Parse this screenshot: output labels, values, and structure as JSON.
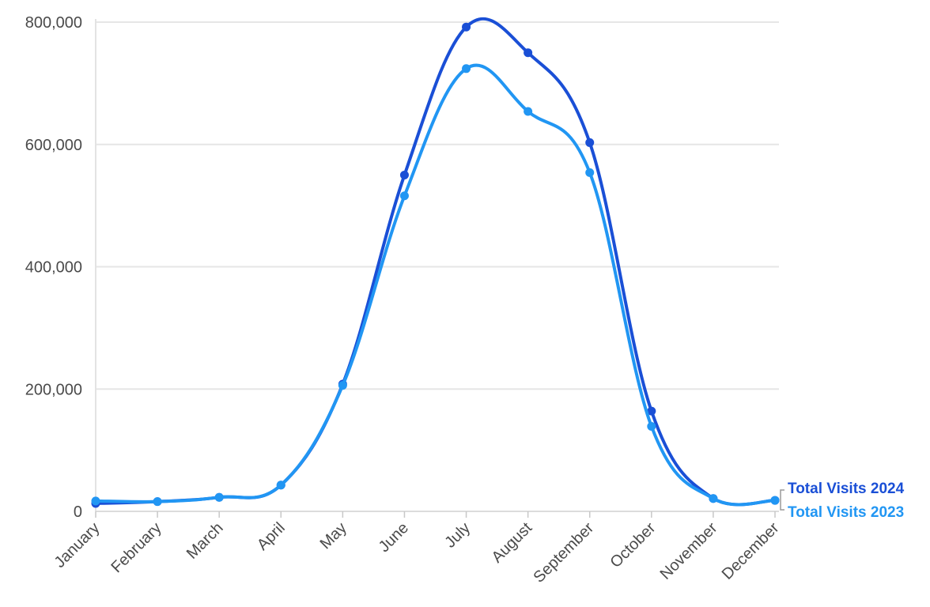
{
  "chart_data": {
    "type": "line",
    "title": "",
    "xlabel": "",
    "ylabel": "",
    "categories": [
      "January",
      "February",
      "March",
      "April",
      "May",
      "June",
      "July",
      "August",
      "September",
      "October",
      "November",
      "December"
    ],
    "ylim": [
      0,
      800000
    ],
    "yticks": [
      0,
      200000,
      400000,
      600000,
      800000
    ],
    "ytick_labels": [
      "0",
      "200,000",
      "400,000",
      "600,000",
      "800,000"
    ],
    "grid": "horizontal",
    "legend": "right, at line ends",
    "series": [
      {
        "name": "Total Visits 2024",
        "color": "#1a4fd6",
        "values": [
          13000,
          16000,
          23000,
          43000,
          208000,
          550000,
          792000,
          750000,
          603000,
          164000,
          21000,
          18000
        ]
      },
      {
        "name": "Total Visits 2023",
        "color": "#2196f3",
        "values": [
          17000,
          16000,
          23000,
          43000,
          206000,
          516000,
          724000,
          654000,
          554000,
          139000,
          21000,
          18000
        ]
      }
    ]
  }
}
